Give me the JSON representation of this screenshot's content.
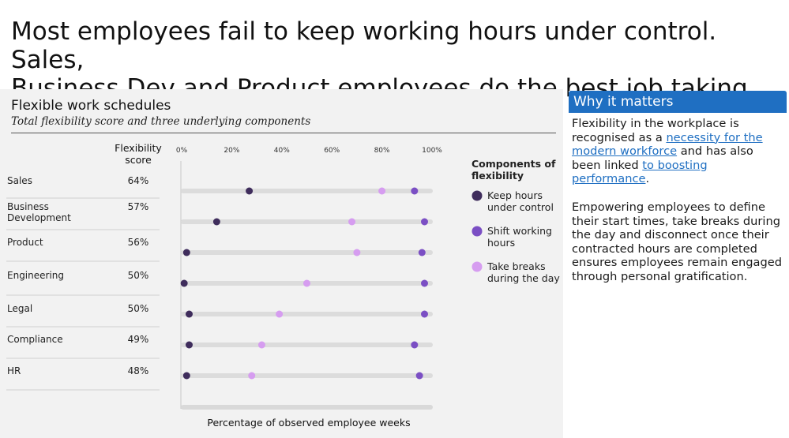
{
  "headline": {
    "line1": "Most employees fail to keep working hours under control. Sales,",
    "line2": "Business Dev and Product employees do the best job taking breaks"
  },
  "chart_header": {
    "title": "Flexible work schedules",
    "subtitle": "Total flexibility score and three underlying components"
  },
  "side_panel": {
    "title": "Why it matters",
    "p1_before": "Flexibility in the workplace is recognised as a ",
    "p1_link1": "necessity for the modern workforce",
    "p1_middle": " and has also been linked ",
    "p1_link2": "to boosting performance",
    "p1_after": ".",
    "p2": "Empowering employees to define their start times, take breaks during the day and disconnect once their contracted hours are completed ensures employees remain engaged through personal gratification."
  },
  "chart_data": {
    "type": "scatter",
    "title": "Flexible work schedules",
    "subtitle": "Total flexibility score and three underlying components",
    "score_header": "Flexibility score",
    "xlabel": "Percentage of observed employee weeks",
    "xlim": [
      0,
      100
    ],
    "x_ticks": [
      "0%",
      "20%",
      "40%",
      "60%",
      "80%",
      "100%"
    ],
    "legend_title": "Components of flexibility",
    "legend_position": "right",
    "categories": [
      "Sales",
      "Business Development",
      "Product",
      "Engineering",
      "Legal",
      "Compliance",
      "HR"
    ],
    "scores": [
      "64%",
      "57%",
      "56%",
      "50%",
      "50%",
      "49%",
      "48%"
    ],
    "series": [
      {
        "name": "Keep hours under control",
        "color": "#3f2d5c",
        "values": [
          27,
          14,
          2,
          1,
          3,
          3,
          2
        ]
      },
      {
        "name": "Shift working hours",
        "color": "#7b4fc4",
        "values": [
          93,
          97,
          96,
          97,
          97,
          93,
          95
        ]
      },
      {
        "name": "Take breaks during the day",
        "color": "#d69df0",
        "values": [
          80,
          68,
          70,
          50,
          39,
          32,
          28
        ]
      }
    ]
  }
}
